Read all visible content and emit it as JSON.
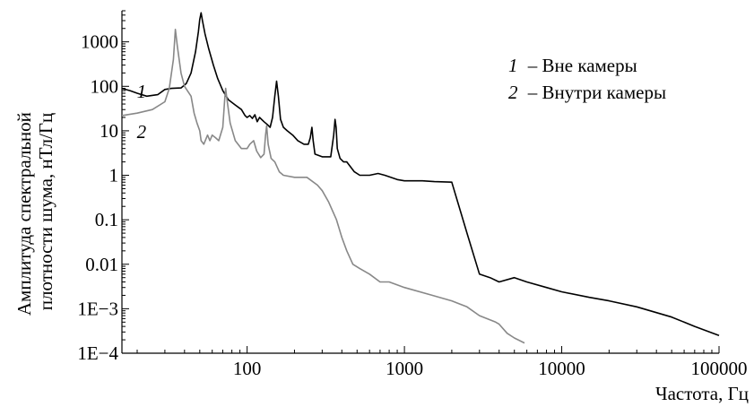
{
  "chart_data": {
    "type": "line",
    "xlabel": "Частота, Гц",
    "ylabel_lines": [
      "Амплитуда спектральной",
      "плотности шума, нТл/Гц"
    ],
    "x_scale": "log",
    "y_scale": "log",
    "xlim": [
      16,
      100000
    ],
    "ylim": [
      0.0001,
      5000
    ],
    "x_ticks": [
      {
        "value": 100,
        "label": "100"
      },
      {
        "value": 1000,
        "label": "1000"
      },
      {
        "value": 10000,
        "label": "10000"
      },
      {
        "value": 100000,
        "label": "100000"
      }
    ],
    "y_ticks": [
      {
        "value": 1000,
        "label": "1000"
      },
      {
        "value": 100,
        "label": "100"
      },
      {
        "value": 10,
        "label": "10"
      },
      {
        "value": 1,
        "label": "1"
      },
      {
        "value": 0.1,
        "label": "0.1"
      },
      {
        "value": 0.01,
        "label": "0.01"
      },
      {
        "value": 0.001,
        "label": "1E−3"
      },
      {
        "value": 0.0001,
        "label": "1E−4"
      }
    ],
    "grid": false,
    "legend_position": "top-right",
    "legend": [
      {
        "number": "1",
        "text": "– Вне камеры"
      },
      {
        "number": "2",
        "text": "– Внутри камеры"
      }
    ],
    "series": [
      {
        "name": "Вне камеры",
        "curve_label": "1",
        "label_at": [
          17,
          80
        ],
        "color": "#000000",
        "points": [
          [
            16,
            90
          ],
          [
            18,
            80
          ],
          [
            20,
            70
          ],
          [
            23,
            60
          ],
          [
            27,
            65
          ],
          [
            30,
            85
          ],
          [
            33,
            90
          ],
          [
            38,
            92
          ],
          [
            41,
            115
          ],
          [
            44,
            200
          ],
          [
            47,
            600
          ],
          [
            49,
            1700
          ],
          [
            50,
            3200
          ],
          [
            51,
            4500
          ],
          [
            52,
            3000
          ],
          [
            54,
            1500
          ],
          [
            57,
            700
          ],
          [
            61,
            300
          ],
          [
            65,
            150
          ],
          [
            70,
            80
          ],
          [
            76,
            50
          ],
          [
            84,
            38
          ],
          [
            92,
            30
          ],
          [
            97,
            22
          ],
          [
            100,
            20
          ],
          [
            104,
            22
          ],
          [
            108,
            19
          ],
          [
            112,
            23
          ],
          [
            116,
            16
          ],
          [
            120,
            20
          ],
          [
            128,
            16
          ],
          [
            134,
            14
          ],
          [
            140,
            12
          ],
          [
            145,
            20
          ],
          [
            150,
            60
          ],
          [
            154,
            130
          ],
          [
            158,
            60
          ],
          [
            163,
            18
          ],
          [
            170,
            12
          ],
          [
            180,
            10
          ],
          [
            195,
            8
          ],
          [
            210,
            6
          ],
          [
            230,
            5
          ],
          [
            245,
            5
          ],
          [
            252,
            7
          ],
          [
            258,
            12
          ],
          [
            263,
            6
          ],
          [
            270,
            3
          ],
          [
            300,
            2.6
          ],
          [
            340,
            2.6
          ],
          [
            355,
            8
          ],
          [
            362,
            18
          ],
          [
            368,
            12
          ],
          [
            374,
            4
          ],
          [
            390,
            2.4
          ],
          [
            410,
            2
          ],
          [
            430,
            2
          ],
          [
            480,
            1.2
          ],
          [
            520,
            1
          ],
          [
            600,
            1
          ],
          [
            680,
            1.1
          ],
          [
            750,
            1
          ],
          [
            900,
            0.8
          ],
          [
            1000,
            0.75
          ],
          [
            1300,
            0.75
          ],
          [
            1550,
            0.72
          ],
          [
            2000,
            0.7
          ],
          [
            2500,
            0.05
          ],
          [
            3000,
            0.006
          ],
          [
            3500,
            0.005
          ],
          [
            4000,
            0.004
          ],
          [
            5000,
            0.005
          ],
          [
            6000,
            0.004
          ],
          [
            8000,
            0.003
          ],
          [
            10000,
            0.0024
          ],
          [
            15000,
            0.0018
          ],
          [
            20000,
            0.0015
          ],
          [
            30000,
            0.0011
          ],
          [
            50000,
            0.00065
          ],
          [
            70000,
            0.0004
          ],
          [
            100000,
            0.00025
          ]
        ]
      },
      {
        "name": "Внутри камеры",
        "curve_label": "2",
        "label_at": [
          17,
          10
        ],
        "color": "#888888",
        "points": [
          [
            16,
            22
          ],
          [
            20,
            25
          ],
          [
            25,
            30
          ],
          [
            30,
            45
          ],
          [
            32,
            90
          ],
          [
            34,
            400
          ],
          [
            35,
            1900
          ],
          [
            36,
            800
          ],
          [
            38,
            200
          ],
          [
            40,
            100
          ],
          [
            44,
            60
          ],
          [
            46,
            25
          ],
          [
            48,
            15
          ],
          [
            50,
            10
          ],
          [
            51,
            6
          ],
          [
            53,
            5
          ],
          [
            56,
            8
          ],
          [
            58,
            6
          ],
          [
            60,
            8
          ],
          [
            63,
            7
          ],
          [
            66,
            6
          ],
          [
            70,
            12
          ],
          [
            72,
            50
          ],
          [
            73,
            90
          ],
          [
            74,
            60
          ],
          [
            78,
            15
          ],
          [
            84,
            6
          ],
          [
            92,
            4
          ],
          [
            100,
            4
          ],
          [
            104,
            5
          ],
          [
            110,
            6
          ],
          [
            115,
            3.5
          ],
          [
            122,
            2.5
          ],
          [
            128,
            3
          ],
          [
            131,
            8
          ],
          [
            133,
            13
          ],
          [
            136,
            5
          ],
          [
            142,
            2.4
          ],
          [
            150,
            2
          ],
          [
            160,
            1.2
          ],
          [
            170,
            1
          ],
          [
            200,
            0.9
          ],
          [
            240,
            0.9
          ],
          [
            280,
            0.6
          ],
          [
            300,
            0.45
          ],
          [
            330,
            0.25
          ],
          [
            370,
            0.1
          ],
          [
            400,
            0.04
          ],
          [
            430,
            0.02
          ],
          [
            470,
            0.01
          ],
          [
            520,
            0.008
          ],
          [
            600,
            0.006
          ],
          [
            700,
            0.004
          ],
          [
            800,
            0.004
          ],
          [
            1000,
            0.003
          ],
          [
            1500,
            0.002
          ],
          [
            2000,
            0.0015
          ],
          [
            2500,
            0.0011
          ],
          [
            3000,
            0.0007
          ],
          [
            3800,
            0.0005
          ],
          [
            4000,
            0.00045
          ],
          [
            4500,
            0.00028
          ],
          [
            5000,
            0.00022
          ],
          [
            5800,
            0.00017
          ]
        ]
      }
    ]
  }
}
